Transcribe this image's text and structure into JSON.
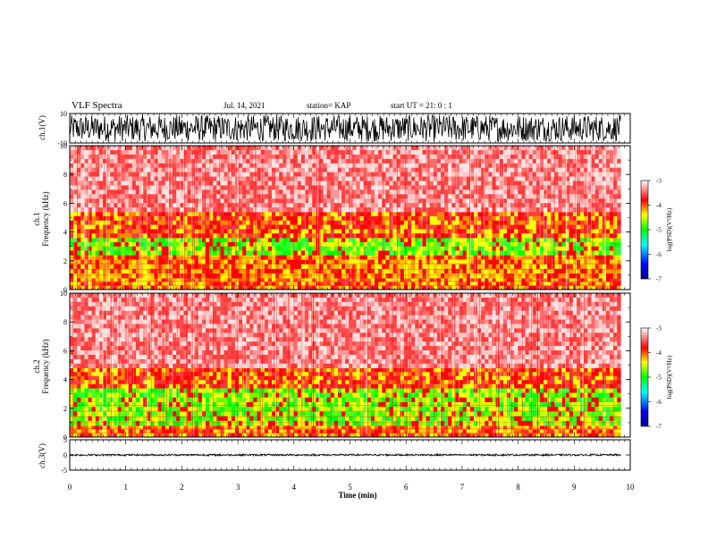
{
  "header": {
    "title": "VLF Spectra",
    "date": "Jul. 14, 2021",
    "station": "station= KAP",
    "start": "start  UT =   21: 0  : 1"
  },
  "chart_data": [
    {
      "type": "line",
      "name": "ch1-waveform",
      "ylabel": "ch.1(V)",
      "ylim": [
        -10,
        10
      ],
      "yticks": [
        "10",
        "-10"
      ],
      "x_range": [
        0,
        9.83
      ],
      "amplitude_range": [
        -9,
        9
      ]
    },
    {
      "type": "heatmap",
      "name": "ch1-spectrogram",
      "ylabel": "ch.1\nFrequency (kHz)",
      "ylim": [
        0,
        10
      ],
      "yticks": [
        "0",
        "2",
        "4",
        "6",
        "8",
        "10"
      ],
      "x_range": [
        0,
        9.83
      ],
      "colorbar": {
        "label": "log(PSD)(V²/Hz)",
        "range": [
          -7,
          -3
        ],
        "ticks": [
          "-3",
          "-4",
          "-5",
          "-6",
          "-7"
        ],
        "colors": [
          "#00008b",
          "#0000ff",
          "#00ffff",
          "#00ff00",
          "#ffff00",
          "#ff0000",
          "#ffffff"
        ]
      },
      "bands": [
        {
          "fmin": 0,
          "fmax": 0.8,
          "level": "high"
        },
        {
          "fmin": 0.8,
          "fmax": 2.4,
          "level": "yellow-red"
        },
        {
          "fmin": 2.4,
          "fmax": 3.6,
          "level": "green-yellow"
        },
        {
          "fmin": 3.6,
          "fmax": 5.4,
          "level": "red"
        },
        {
          "fmin": 5.4,
          "fmax": 10,
          "level": "light-red"
        }
      ]
    },
    {
      "type": "heatmap",
      "name": "ch2-spectrogram",
      "ylabel": "ch.2\nFrequency (kHz)",
      "ylim": [
        0,
        10
      ],
      "yticks": [
        "0",
        "2",
        "4",
        "6",
        "8",
        "10"
      ],
      "x_range": [
        0,
        9.83
      ],
      "colorbar": {
        "label": "log(PSD)(V²/Hz)",
        "range": [
          -7,
          -3
        ],
        "ticks": [
          "-3",
          "-4",
          "-5",
          "-6",
          "-7"
        ],
        "colors": [
          "#00008b",
          "#0000ff",
          "#00ffff",
          "#00ff00",
          "#ffff00",
          "#ff0000",
          "#ffffff"
        ]
      },
      "bands": [
        {
          "fmin": 0,
          "fmax": 0.8,
          "level": "high"
        },
        {
          "fmin": 0.8,
          "fmax": 3.4,
          "level": "green-yellow"
        },
        {
          "fmin": 3.4,
          "fmax": 4.8,
          "level": "red"
        },
        {
          "fmin": 4.8,
          "fmax": 10,
          "level": "light-red"
        }
      ]
    },
    {
      "type": "line",
      "name": "ch3-waveform",
      "ylabel": "ch.3(V)",
      "ylim": [
        -5,
        5
      ],
      "yticks": [
        "5",
        "0",
        "-5"
      ],
      "x_range": [
        0,
        9.83
      ],
      "amplitude_range": [
        -0.3,
        0.3
      ],
      "xlabel": "Time (min)",
      "xlim": [
        0,
        10
      ],
      "xticks": [
        "0",
        "1",
        "2",
        "3",
        "4",
        "5",
        "6",
        "7",
        "8",
        "9",
        "10"
      ]
    }
  ]
}
